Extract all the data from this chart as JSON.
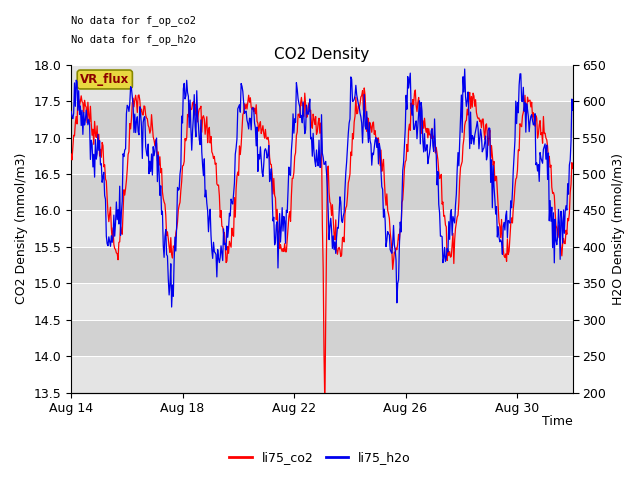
{
  "title": "CO2 Density",
  "xlabel": "Time",
  "ylabel_left": "CO2 Density (mmol/m3)",
  "ylabel_right": "H2O Density (mmol/m3)",
  "ylim_left": [
    13.5,
    18.0
  ],
  "ylim_right": [
    200,
    650
  ],
  "yticks_left": [
    13.5,
    14.0,
    14.5,
    15.0,
    15.5,
    16.0,
    16.5,
    17.0,
    17.5,
    18.0
  ],
  "yticks_right": [
    200,
    250,
    300,
    350,
    400,
    450,
    500,
    550,
    600,
    650
  ],
  "xtick_labels": [
    "Aug 14",
    "Aug 18",
    "Aug 22",
    "Aug 26",
    "Aug 30"
  ],
  "xtick_positions": [
    0.0,
    0.2222,
    0.4444,
    0.6667,
    0.8889
  ],
  "annotation_line1": "No data for f_op_co2",
  "annotation_line2": "No data for f_op_h2o",
  "vr_flux_label": "VR_flux",
  "legend_co2": "li75_co2",
  "legend_h2o": "li75_h2o",
  "color_co2": "#ff0000",
  "color_h2o": "#0000ee",
  "bg_color": "#ffffff",
  "band_dark": "#d2d2d2",
  "band_light": "#e4e4e4",
  "seed": 7,
  "n_points": 600
}
